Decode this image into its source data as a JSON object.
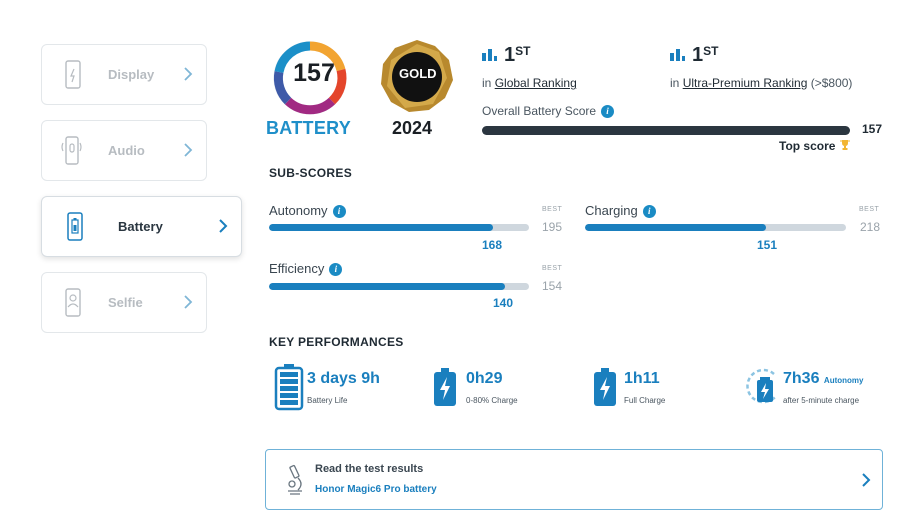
{
  "sidebar": {
    "items": [
      {
        "label": "Display",
        "icon": "smartphone-display-icon",
        "active": false
      },
      {
        "label": "Audio",
        "icon": "smartphone-audio-icon",
        "active": false
      },
      {
        "label": "Battery",
        "icon": "smartphone-battery-icon",
        "active": true
      },
      {
        "label": "Selfie",
        "icon": "smartphone-selfie-icon",
        "active": false
      }
    ]
  },
  "badges": {
    "score": "157",
    "category": "BATTERY",
    "award": "GOLD",
    "year": "2024"
  },
  "rankings": [
    {
      "rank": "1",
      "suffix": "ST",
      "prefix": "in",
      "name": "Global Ranking",
      "extra": ""
    },
    {
      "rank": "1",
      "suffix": "ST",
      "prefix": "in",
      "name": "Ultra-Premium Ranking",
      "extra": "(>$800)"
    }
  ],
  "overall": {
    "label": "Overall Battery Score",
    "value": "157",
    "fraction": 1.0,
    "top_score_label": "Top score"
  },
  "subscores": {
    "title": "SUB-SCORES",
    "best_label": "BEST",
    "items": [
      {
        "label": "Autonomy",
        "score": "168",
        "best": "195",
        "fraction": 0.862
      },
      {
        "label": "Charging",
        "score": "151",
        "best": "218",
        "fraction": 0.693
      },
      {
        "label": "Efficiency",
        "score": "140",
        "best": "154",
        "fraction": 0.909
      }
    ]
  },
  "key_performances": {
    "title": "KEY PERFORMANCES",
    "items": [
      {
        "value": "3 days 9h",
        "unit": "",
        "caption": "Battery Life",
        "icon": "battery-full-icon"
      },
      {
        "value": "0h29",
        "unit": "",
        "caption": "0-80% Charge",
        "icon": "battery-charge-icon"
      },
      {
        "value": "1h11",
        "unit": "",
        "caption": "Full Charge",
        "icon": "battery-charge-icon"
      },
      {
        "value": "7h36",
        "unit": "Autonomy",
        "caption": "after 5-minute charge",
        "icon": "battery-quick-charge-icon"
      }
    ]
  },
  "results": {
    "title": "Read the test results",
    "link": "Honor Magic6 Pro battery",
    "icon": "microscope-icon"
  },
  "colors": {
    "accent": "#1a7fbe",
    "dark_bar": "#2b3640",
    "track": "#cfd7de"
  }
}
